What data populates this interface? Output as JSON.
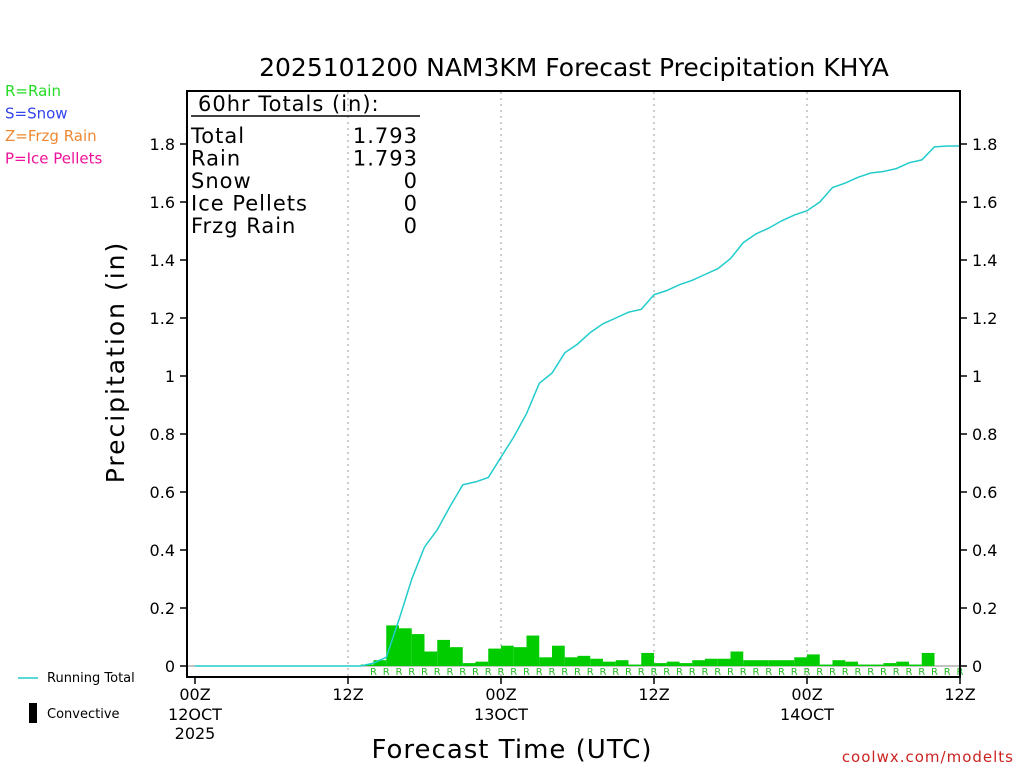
{
  "chart_data": {
    "type": "bar",
    "title": "2025101200 NAM3KM Forecast Precipitation KHYA",
    "xlabel": "Forecast Time (UTC)",
    "ylabel": "Precipitation (in)",
    "ylim": [
      0,
      2.0
    ],
    "yticks": [
      0,
      0.2,
      0.4,
      0.6,
      0.8,
      1,
      1.2,
      1.4,
      1.6,
      1.8
    ],
    "ytick_labels": [
      "0",
      "0.2",
      "0.4",
      "0.6",
      "0.8",
      "1",
      "1.2",
      "1.4",
      "1.6",
      "1.8"
    ],
    "xlim_hours": [
      0,
      60
    ],
    "xticks": [
      {
        "hour": 0,
        "label": "00Z",
        "sub": [
          "12OCT",
          "2025"
        ]
      },
      {
        "hour": 12,
        "label": "12Z",
        "sub": []
      },
      {
        "hour": 24,
        "label": "00Z",
        "sub": [
          "13OCT"
        ]
      },
      {
        "hour": 36,
        "label": "12Z",
        "sub": []
      },
      {
        "hour": 48,
        "label": "00Z",
        "sub": [
          "14OCT"
        ]
      },
      {
        "hour": 60,
        "label": "12Z",
        "sub": []
      }
    ],
    "totals_box": {
      "heading": "60hr Totals (in):",
      "rows": [
        {
          "label": "Total",
          "value": "1.793"
        },
        {
          "label": "Rain",
          "value": "1.793"
        },
        {
          "label": "Snow",
          "value": "0"
        },
        {
          "label": "Ice Pellets",
          "value": "0"
        },
        {
          "label": "Frzg Rain",
          "value": "0"
        }
      ]
    },
    "ptype_legend": [
      {
        "text": "R=Rain",
        "color": "#22dd22"
      },
      {
        "text": "S=Snow",
        "color": "#3344ee"
      },
      {
        "text": "Z=Frzg Rain",
        "color": "#ee8833"
      },
      {
        "text": "P=Ice Pellets",
        "color": "#ee1199"
      }
    ],
    "series_legend": {
      "running_total": "Running Total",
      "convective": "Convective"
    },
    "precip_type_marker": "R",
    "precip_type_start_hour": 14,
    "hourly_precip": {
      "start_hour": 1,
      "values": [
        0,
        0,
        0,
        0,
        0,
        0,
        0,
        0,
        0,
        0,
        0,
        0,
        0,
        0.005,
        0.02,
        0.14,
        0.13,
        0.11,
        0.05,
        0.09,
        0.065,
        0.01,
        0.015,
        0.06,
        0.07,
        0.065,
        0.105,
        0.03,
        0.07,
        0.03,
        0.035,
        0.025,
        0.015,
        0.02,
        0.005,
        0.045,
        0.01,
        0.015,
        0.01,
        0.02,
        0.025,
        0.025,
        0.05,
        0.02,
        0.02,
        0.02,
        0.02,
        0.03,
        0.04,
        0.005,
        0.02,
        0.015,
        0.005,
        0.005,
        0.01,
        0.015,
        0.005,
        0.045,
        0,
        0
      ]
    },
    "running_total": {
      "hours": [
        0,
        13,
        14,
        15,
        16,
        17,
        18,
        19,
        20,
        21,
        22,
        23,
        24,
        25,
        26,
        27,
        28,
        29,
        30,
        31,
        32,
        33,
        34,
        35,
        36,
        37,
        38,
        39,
        40,
        41,
        42,
        43,
        44,
        45,
        46,
        47,
        48,
        49,
        50,
        51,
        52,
        53,
        54,
        55,
        56,
        57,
        58,
        59,
        60
      ],
      "values": [
        0,
        0,
        0.01,
        0.03,
        0.16,
        0.3,
        0.41,
        0.47,
        0.55,
        0.625,
        0.635,
        0.65,
        0.72,
        0.79,
        0.87,
        0.975,
        1.01,
        1.08,
        1.11,
        1.15,
        1.18,
        1.2,
        1.22,
        1.23,
        1.28,
        1.295,
        1.315,
        1.33,
        1.35,
        1.37,
        1.405,
        1.46,
        1.49,
        1.51,
        1.535,
        1.555,
        1.57,
        1.6,
        1.65,
        1.665,
        1.685,
        1.7,
        1.705,
        1.715,
        1.735,
        1.745,
        1.79,
        1.793,
        1.793
      ]
    },
    "series_colors": {
      "bars": "#00cc00",
      "running_total": "#22cccc",
      "ptype_marker": "#22bb22"
    }
  },
  "footer": {
    "credit": "coolwx.com/modelts",
    "credit_color": "#cc2222"
  }
}
